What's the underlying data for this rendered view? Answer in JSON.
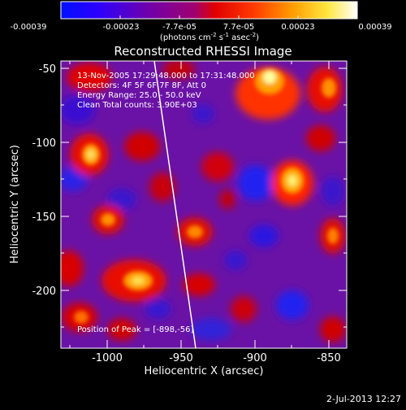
{
  "colorbar": {
    "tick_labels": [
      "-0.00039",
      "-0.00023",
      "-7.7e-05",
      "7.7e-05",
      "0.00023",
      "0.00039"
    ],
    "units_label": "(photons cm",
    "units_exp1": "-2",
    "units_mid": " s",
    "units_exp2": "-1",
    "units_end": " asec",
    "units_exp3": "-2",
    "units_close": ")",
    "colors": [
      "#0010ff",
      "#2a00ff",
      "#7000a8",
      "#b00060",
      "#ff0000",
      "#ff6a00",
      "#ffb000",
      "#ffff40",
      "#ffffff"
    ]
  },
  "plot": {
    "title": "Reconstructed RHESSI Image",
    "xlabel": "Heliocentric X (arcsec)",
    "ylabel": "Heliocentric Y (arcsec)",
    "xlim": [
      -1033,
      -840
    ],
    "ylim": [
      -238,
      -45
    ],
    "x_ticks": [
      "-1000",
      "-950",
      "-900",
      "-850"
    ],
    "y_ticks": [
      "-50",
      "-100",
      "-150",
      "-200"
    ],
    "annotations": [
      "13-Nov-2005 17:29:48.000 to 17:31:48.000",
      "Detectors: 4F 5F 6F 7F 8F, Att 0",
      "Energy Range: 25.0 - 50.0 keV",
      "Clean     Total counts: 3.90E+03"
    ],
    "peak_label": "Position of Peak = [-898,-56]"
  },
  "footer": {
    "date": "2-Jul-2013 12:27"
  }
}
